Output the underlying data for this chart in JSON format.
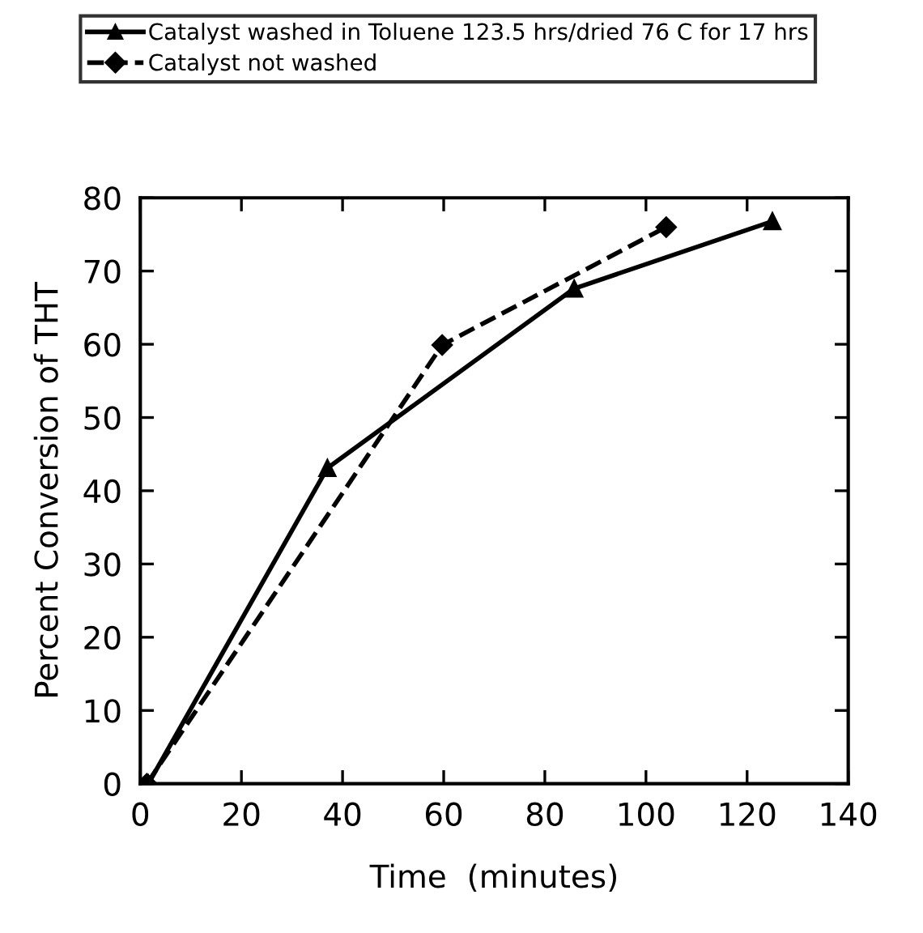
{
  "chart_data": {
    "type": "line",
    "xlabel": "Time  (minutes)",
    "ylabel": "Percent Conversion of THT",
    "series": [
      {
        "name": "Catalyst washed in Toluene 123.5 hrs/dried 76 C for 17 hrs",
        "color": "#000000",
        "x": [
          1.6,
          37,
          85.8,
          125
        ],
        "values": [
          0,
          43.1,
          67.6,
          76.8
        ],
        "marker": "triangle",
        "line_style": "solid"
      },
      {
        "name": "Catalyst not washed",
        "color": "#000000",
        "x": [
          1.3,
          59.7,
          104
        ],
        "values": [
          0,
          59.9,
          76.0
        ],
        "marker": "diamond",
        "line_style": "dashed"
      }
    ],
    "xlim": [
      0,
      140
    ],
    "xticks": [
      0,
      20,
      40,
      60,
      80,
      100,
      120,
      140
    ],
    "ylim": [
      0,
      80
    ],
    "yticks": [
      0,
      10,
      20,
      30,
      40,
      50,
      60,
      70,
      80
    ],
    "grid": false,
    "legend": "top"
  }
}
